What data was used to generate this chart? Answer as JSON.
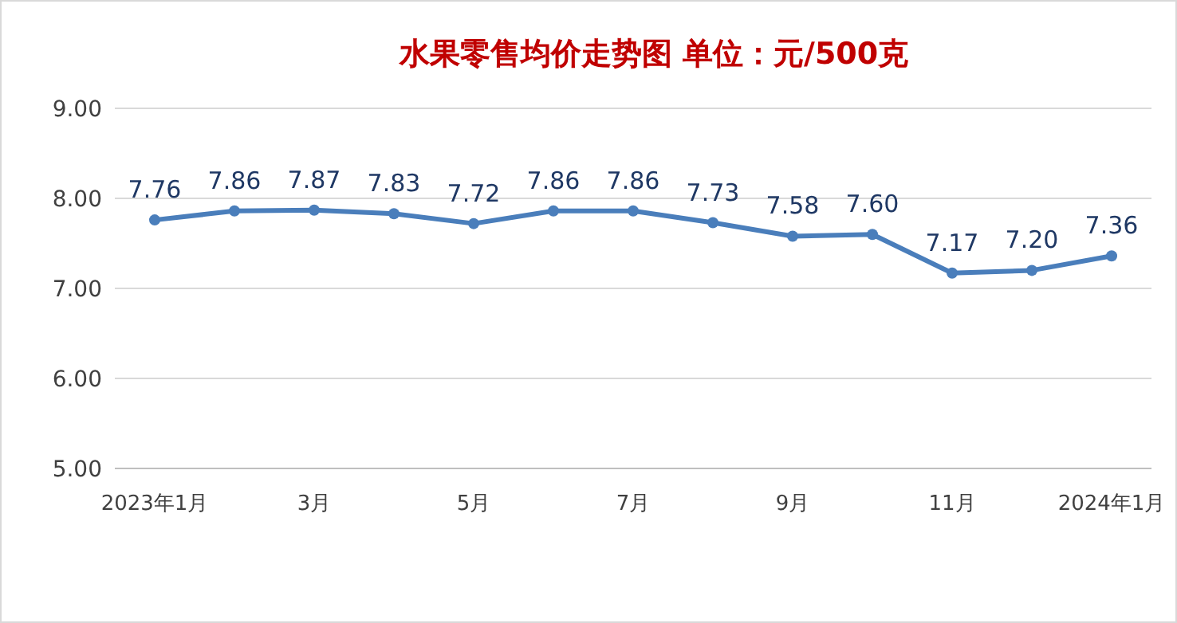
{
  "chart_data": {
    "type": "line",
    "title": "水果零售均价走势图   单位：元/500克",
    "categories": [
      "2023年1月",
      null,
      "3月",
      null,
      "5月",
      null,
      "7月",
      null,
      "9月",
      null,
      "11月",
      null,
      "2024年1月"
    ],
    "series": [
      {
        "color": "#4a7ebb",
        "values": [
          7.76,
          7.86,
          7.87,
          7.83,
          7.72,
          7.86,
          7.86,
          7.73,
          7.58,
          7.6,
          7.17,
          7.2,
          7.36
        ],
        "value_labels": [
          "7.76",
          "7.86",
          "7.87",
          "7.83",
          "7.72",
          "7.86",
          "7.86",
          "7.73",
          "7.58",
          "7.60",
          "7.17",
          "7.20",
          "7.36"
        ]
      }
    ],
    "ylim": [
      5,
      9
    ],
    "yticks": [
      {
        "value": 5,
        "label": "5.00"
      },
      {
        "value": 6,
        "label": "6.00"
      },
      {
        "value": 7,
        "label": "7.00"
      },
      {
        "value": 8,
        "label": "8.00"
      },
      {
        "value": 9,
        "label": "9.00"
      }
    ],
    "grid": "y",
    "marker": "circle",
    "line_style": "solid"
  }
}
